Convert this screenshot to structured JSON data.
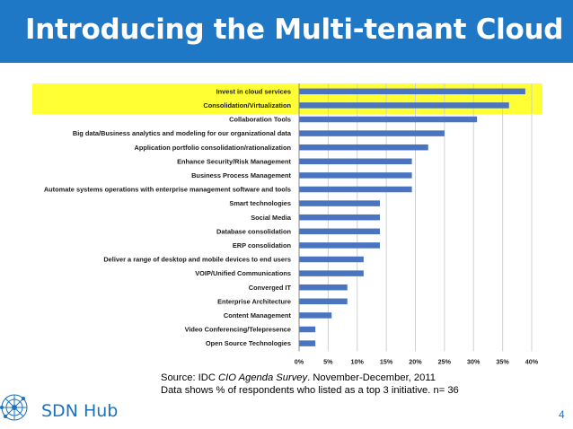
{
  "slide": {
    "title": "Introducing the Multi-tenant Cloud",
    "source_prefix": "Source: IDC ",
    "source_italic": "CIO Agenda Survey",
    "source_suffix": ". November-December, 2011",
    "caption": "Data shows % of respondents who listed as a top 3 initiative. n= 36",
    "brand": "SDN Hub",
    "page_number": "4"
  },
  "colors": {
    "title_bar": "#1f78c6",
    "bar": "#4a74bf",
    "highlight": "#ffff33"
  },
  "chart_data": {
    "type": "bar",
    "orientation": "horizontal",
    "categories": [
      "Invest in cloud services",
      "Consolidation/Virtualization",
      "Collaboration Tools",
      "Big data/Business analytics and modeling for our organizational data",
      "Application portfolio consolidation/rationalization",
      "Enhance Security/Risk Management",
      "Business Process Management",
      "Automate systems operations with enterprise management software and tools",
      "Smart technologies",
      "Social Media",
      "Database consolidation",
      "ERP consolidation",
      "Deliver a range of desktop and mobile devices to end users",
      "VOIP/Unified Communications",
      "Converged IT",
      "Enterprise Architecture",
      "Content Management",
      "Video Conferencing/Telepresence",
      "Open Source Technologies"
    ],
    "values": [
      38.9,
      36.1,
      30.6,
      25.0,
      22.2,
      19.4,
      19.4,
      19.4,
      13.9,
      13.9,
      13.9,
      13.9,
      11.1,
      11.1,
      8.3,
      8.3,
      5.6,
      2.8,
      2.8
    ],
    "highlighted": [
      "Invest in cloud services",
      "Consolidation/Virtualization"
    ],
    "xlim": [
      0,
      40
    ],
    "xticks": [
      "0%",
      "5%",
      "10%",
      "15%",
      "20%",
      "25%",
      "30%",
      "35%",
      "40%"
    ],
    "grid": true
  }
}
